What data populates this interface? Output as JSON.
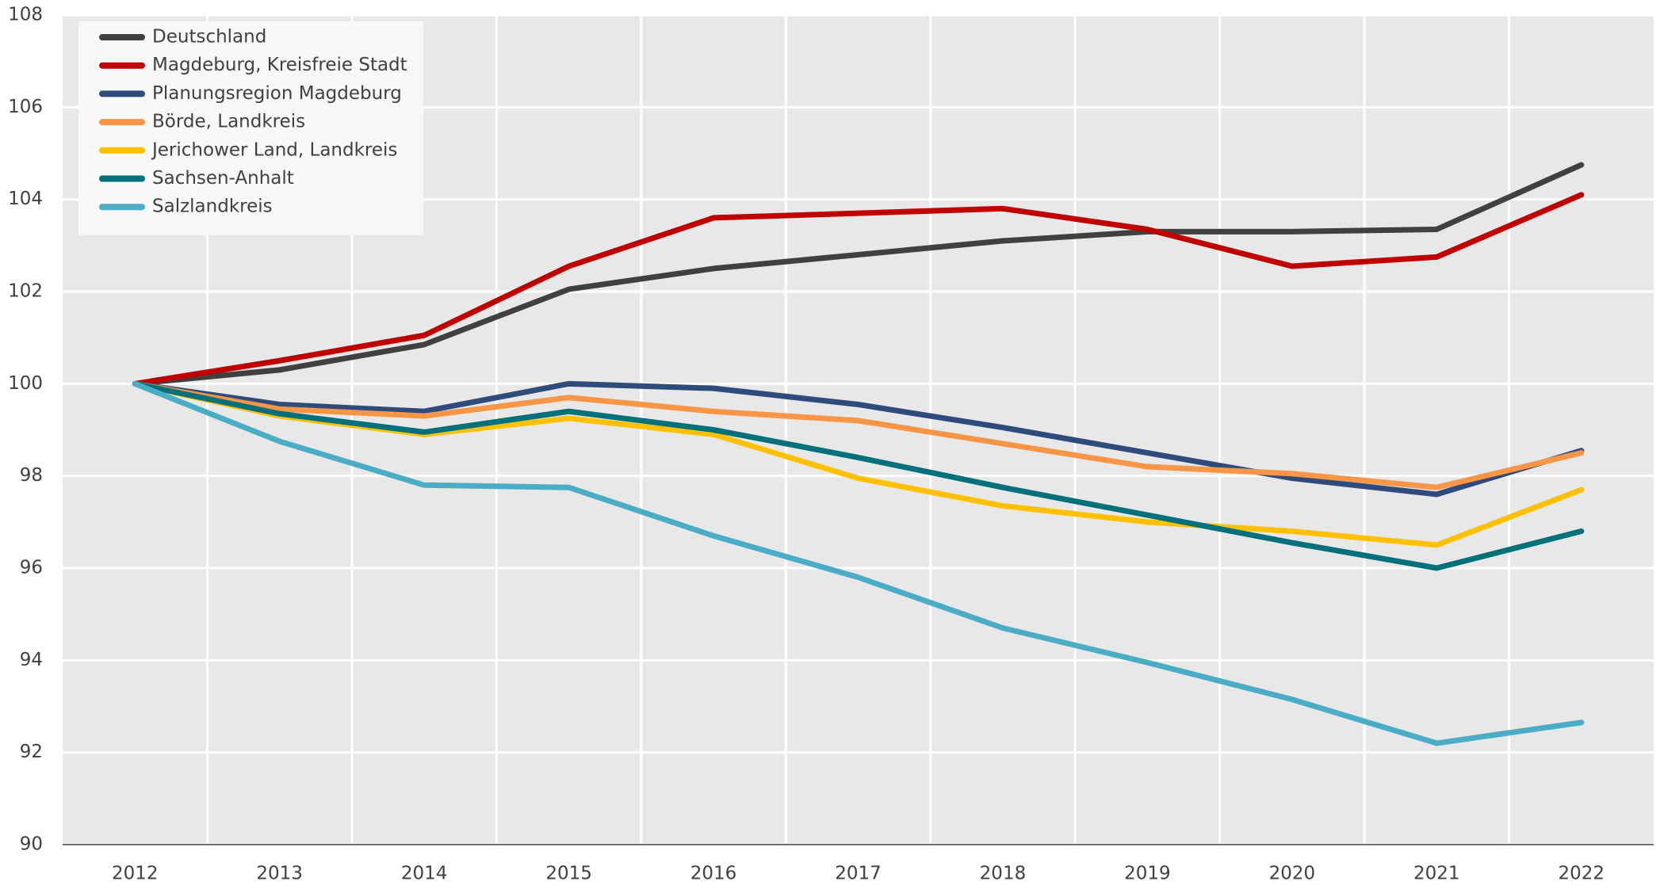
{
  "chart_data": {
    "type": "line",
    "categories": [
      "2012",
      "2013",
      "2014",
      "2015",
      "2016",
      "2017",
      "2018",
      "2019",
      "2020",
      "2021",
      "2022"
    ],
    "series": [
      {
        "name": "Deutschland",
        "color": "#404040",
        "values": [
          100,
          100.3,
          100.85,
          102.05,
          102.5,
          102.8,
          103.1,
          103.3,
          103.3,
          103.35,
          104.75
        ]
      },
      {
        "name": "Magdeburg, Kreisfreie Stadt",
        "color": "#c00000",
        "values": [
          100,
          100.5,
          101.05,
          102.55,
          103.6,
          103.7,
          103.8,
          103.35,
          102.55,
          102.75,
          104.1
        ]
      },
      {
        "name": "Planungsregion Magdeburg",
        "color": "#2f4b7c",
        "values": [
          100,
          99.55,
          99.4,
          100.0,
          99.9,
          99.55,
          99.05,
          98.5,
          97.95,
          97.6,
          98.55
        ]
      },
      {
        "name": "Börde, Landkreis",
        "color": "#f79646",
        "values": [
          100,
          99.45,
          99.3,
          99.7,
          99.4,
          99.2,
          98.7,
          98.2,
          98.05,
          97.75,
          98.5
        ]
      },
      {
        "name": "Jerichower Land, Landkreis",
        "color": "#ffc000",
        "values": [
          100,
          99.3,
          98.9,
          99.25,
          98.9,
          97.95,
          97.35,
          97.0,
          96.8,
          96.5,
          97.7
        ]
      },
      {
        "name": "Sachsen-Anhalt",
        "color": "#00707a",
        "values": [
          100,
          99.35,
          98.95,
          99.4,
          99.0,
          98.4,
          97.75,
          97.15,
          96.55,
          96.0,
          96.8
        ]
      },
      {
        "name": "Salzlandkreis",
        "color": "#4bacc6",
        "values": [
          100,
          98.75,
          97.8,
          97.75,
          96.7,
          95.8,
          94.7,
          93.95,
          93.15,
          92.2,
          92.65
        ]
      }
    ],
    "ylim": [
      90,
      108
    ],
    "yticks": [
      90,
      92,
      94,
      96,
      98,
      100,
      102,
      104,
      106,
      108
    ],
    "grid": true,
    "legend": "top-left"
  }
}
